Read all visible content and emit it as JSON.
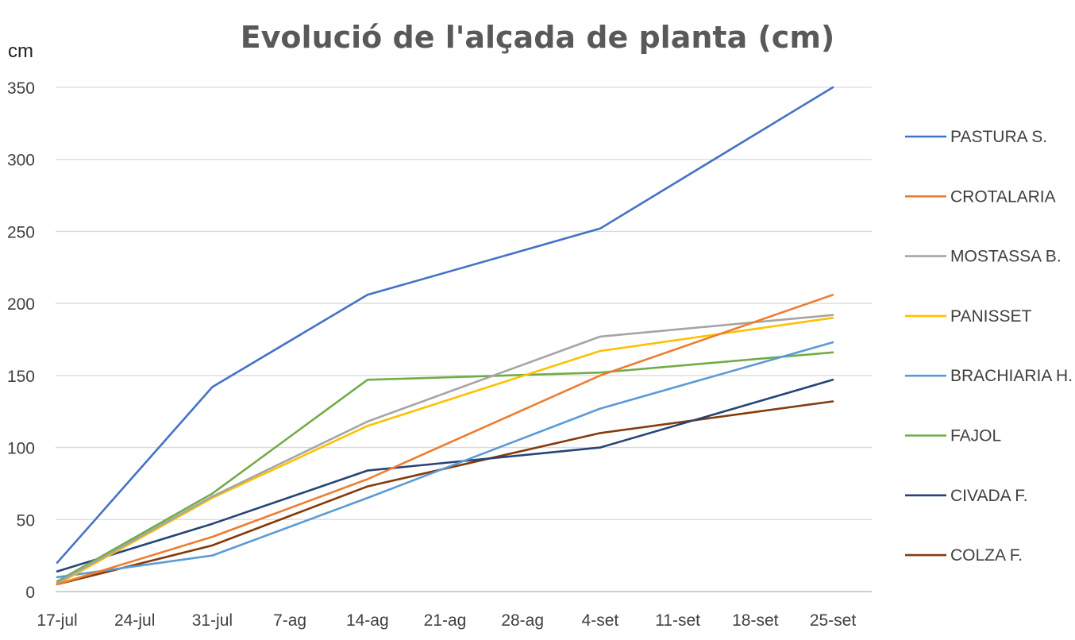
{
  "chart_data": {
    "type": "line",
    "title": "Evolució de l'alçada de planta (cm)",
    "ylabel": "cm",
    "xlabel": "",
    "x_tick_labels": [
      "17-jul",
      "24-jul",
      "31-jul",
      "7-ag",
      "14-ag",
      "21-ag",
      "28-ag",
      "4-set",
      "11-set",
      "18-set",
      "25-set"
    ],
    "x_dates": [
      "17-jul",
      "31-jul",
      "14-ag",
      "4-set",
      "25-set"
    ],
    "y_ticks": [
      0,
      50,
      100,
      150,
      200,
      250,
      300,
      350
    ],
    "ylim": [
      0,
      350
    ],
    "grid": "horizontal",
    "legend_position": "right",
    "series": [
      {
        "name": "PASTURA S.",
        "color": "#4472C4",
        "values": [
          20,
          142,
          206,
          252,
          350
        ]
      },
      {
        "name": "CROTALARIA",
        "color": "#ED7D31",
        "values": [
          5,
          38,
          78,
          150,
          206
        ]
      },
      {
        "name": "MOSTASSA B.",
        "color": "#A5A5A5",
        "values": [
          6,
          66,
          118,
          177,
          192
        ]
      },
      {
        "name": "PANISSET",
        "color": "#FFC000",
        "values": [
          5,
          65,
          115,
          167,
          190
        ]
      },
      {
        "name": "BRACHIARIA H.",
        "color": "#5B9BD5",
        "values": [
          10,
          25,
          65,
          127,
          173
        ]
      },
      {
        "name": "FAJOL",
        "color": "#70AD47",
        "values": [
          7,
          68,
          147,
          152,
          166
        ]
      },
      {
        "name": "CIVADA F.",
        "color": "#264478",
        "values": [
          14,
          47,
          84,
          100,
          147
        ]
      },
      {
        "name": "COLZA F.",
        "color": "#843C0C",
        "values": [
          5,
          32,
          73,
          110,
          132
        ]
      }
    ]
  }
}
